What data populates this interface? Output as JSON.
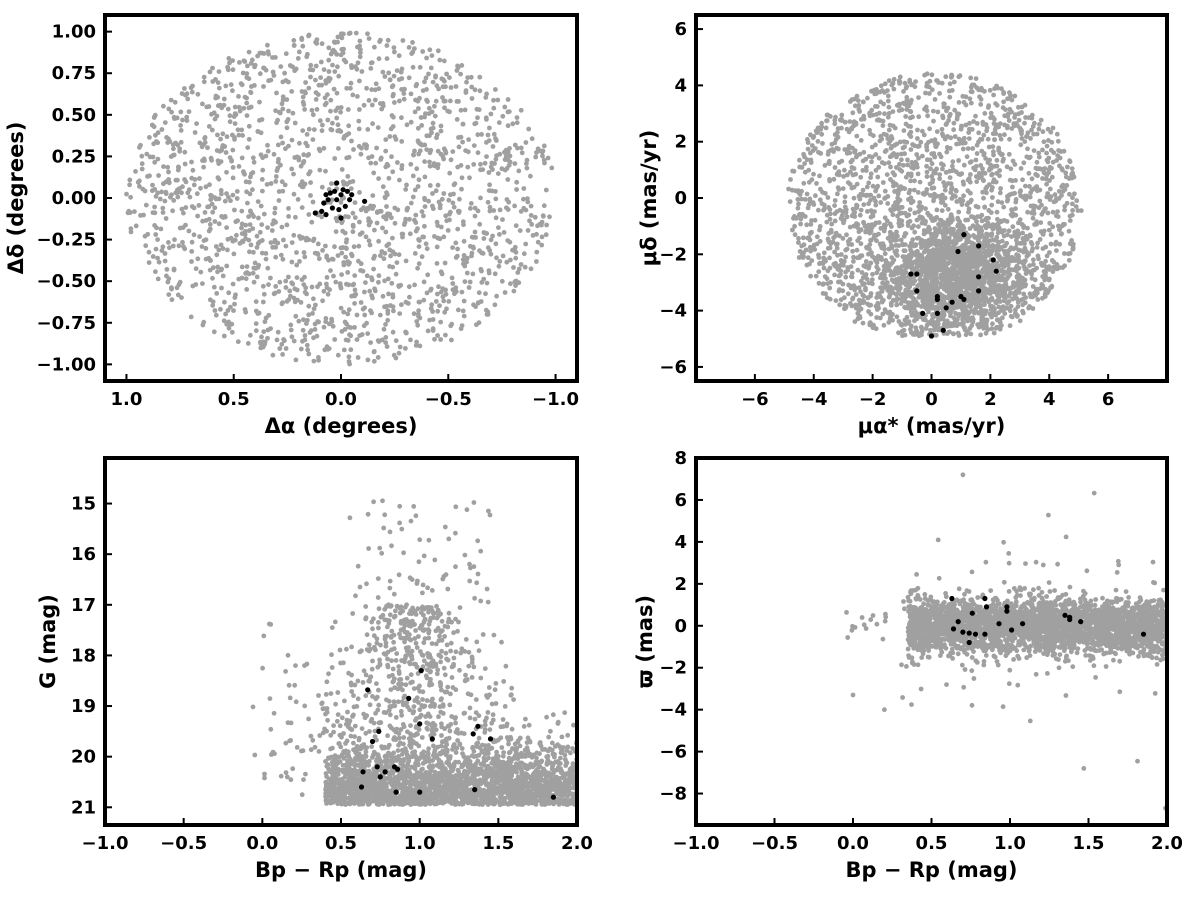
{
  "chart_data": [
    {
      "type": "scatter",
      "title": "",
      "xlabel": "Δα (degrees)",
      "ylabel": "Δδ (degrees)",
      "xlim": [
        1.1,
        -1.1
      ],
      "ylim": [
        -1.1,
        1.1
      ],
      "x_inverted": true,
      "xticks": [
        1.0,
        0.5,
        0.0,
        -0.5,
        -1.0
      ],
      "xtick_labels": [
        "1.0",
        "0.5",
        "0.0",
        "−0.5",
        "−1.0"
      ],
      "yticks": [
        -1.0,
        -0.75,
        -0.5,
        -0.25,
        0.0,
        0.25,
        0.5,
        0.75,
        1.0
      ],
      "ytick_labels": [
        "−1.00",
        "−0.75",
        "−0.50",
        "−0.25",
        "0.00",
        "0.25",
        "0.50",
        "0.75",
        "1.00"
      ],
      "grid": false,
      "field_stars": {
        "color": "#a0a0a0",
        "count_approx": 1800,
        "distribution": "uniform disk of radius 1.0 deg centred at (0, 0)"
      },
      "members": {
        "color": "#000000",
        "points": [
          [
            0.02,
            0.09
          ],
          [
            -0.01,
            0.05
          ],
          [
            0.03,
            0.04
          ],
          [
            -0.03,
            0.04
          ],
          [
            0.05,
            0.03
          ],
          [
            -0.05,
            0.02
          ],
          [
            0.07,
            0.02
          ],
          [
            0.0,
            0.02
          ],
          [
            0.06,
            -0.01
          ],
          [
            -0.04,
            -0.01
          ],
          [
            0.02,
            -0.01
          ],
          [
            0.08,
            -0.03
          ],
          [
            -0.11,
            -0.02
          ],
          [
            -0.02,
            -0.05
          ],
          [
            0.04,
            -0.06
          ],
          [
            0.09,
            -0.08
          ],
          [
            0.01,
            -0.07
          ],
          [
            0.07,
            -0.1
          ],
          [
            0.12,
            -0.09
          ],
          [
            0.0,
            -0.12
          ]
        ]
      }
    },
    {
      "type": "scatter",
      "title": "",
      "xlabel": "μα* (mas/yr)",
      "ylabel": "μδ (mas/yr)",
      "xlim": [
        -8,
        8
      ],
      "ylim": [
        -6.5,
        6.5
      ],
      "xticks": [
        -6,
        -4,
        -2,
        0,
        2,
        4,
        6
      ],
      "xtick_labels": [
        "−6",
        "−4",
        "−2",
        "0",
        "2",
        "4",
        "6"
      ],
      "yticks": [
        -6,
        -4,
        -2,
        0,
        2,
        4,
        6
      ],
      "ytick_labels": [
        "−6",
        "−4",
        "−2",
        "0",
        "2",
        "4",
        "6"
      ],
      "grid": false,
      "field_stars": {
        "color": "#a0a0a0",
        "count_approx": 3000,
        "distribution": "disk of radius ~5 mas/yr centred near (0, 0), truncated at μδ ≈ −5, denser around (0.5, −3)"
      },
      "members": {
        "color": "#000000",
        "points": [
          [
            1.1,
            -1.3
          ],
          [
            0.9,
            -1.9
          ],
          [
            1.6,
            -1.7
          ],
          [
            2.1,
            -2.2
          ],
          [
            2.2,
            -2.6
          ],
          [
            -0.7,
            -2.7
          ],
          [
            -0.5,
            -2.7
          ],
          [
            1.6,
            -2.8
          ],
          [
            -0.5,
            -3.3
          ],
          [
            1.6,
            -3.3
          ],
          [
            0.2,
            -3.5
          ],
          [
            1.0,
            -3.5
          ],
          [
            0.2,
            -3.6
          ],
          [
            1.1,
            -3.6
          ],
          [
            0.7,
            -3.7
          ],
          [
            0.5,
            -3.9
          ],
          [
            -0.3,
            -4.1
          ],
          [
            0.2,
            -4.1
          ],
          [
            0.4,
            -4.7
          ],
          [
            0.0,
            -4.9
          ]
        ]
      }
    },
    {
      "type": "scatter",
      "title": "",
      "xlabel": "Bp − Rp (mag)",
      "ylabel": "G (mag)",
      "xlim": [
        -1.0,
        2.0
      ],
      "ylim": [
        21.35,
        14.1
      ],
      "y_inverted": true,
      "xticks": [
        -1.0,
        -0.5,
        0.0,
        0.5,
        1.0,
        1.5,
        2.0
      ],
      "xtick_labels": [
        "−1.0",
        "−0.5",
        "0.0",
        "0.5",
        "1.0",
        "1.5",
        "2.0"
      ],
      "yticks": [
        21,
        20,
        19,
        18,
        17,
        16,
        15
      ],
      "ytick_labels": [
        "21",
        "20",
        "19",
        "18",
        "17",
        "16",
        "15"
      ],
      "grid": false,
      "field_stars": {
        "color": "#a0a0a0",
        "count_approx": 3000,
        "distribution": "colour-magnitude field population, dense at G ≈ 20–21 and Bp−Rp ≈ 0.4–2.0, tail to brighter magnitudes near Bp−Rp ≈ 0.8–1.3"
      },
      "members": {
        "color": "#000000",
        "points": [
          [
            1.85,
            20.8
          ],
          [
            0.85,
            20.7
          ],
          [
            1.0,
            20.7
          ],
          [
            1.35,
            20.65
          ],
          [
            0.63,
            20.6
          ],
          [
            0.75,
            20.4
          ],
          [
            0.78,
            20.3
          ],
          [
            0.64,
            20.3
          ],
          [
            0.73,
            20.2
          ],
          [
            0.84,
            20.2
          ],
          [
            0.86,
            20.25
          ],
          [
            0.7,
            19.7
          ],
          [
            1.08,
            19.65
          ],
          [
            1.45,
            19.65
          ],
          [
            1.34,
            19.55
          ],
          [
            0.74,
            19.5
          ],
          [
            1.0,
            19.35
          ],
          [
            1.37,
            19.4
          ],
          [
            0.93,
            18.85
          ],
          [
            0.67,
            18.68
          ],
          [
            1.01,
            18.3
          ]
        ]
      }
    },
    {
      "type": "scatter",
      "title": "",
      "xlabel": "Bp − Rp (mag)",
      "ylabel": "ϖ (mas)",
      "xlim": [
        -1.0,
        2.0
      ],
      "ylim": [
        -9.5,
        8.0
      ],
      "xticks": [
        -1.0,
        -0.5,
        0.0,
        0.5,
        1.0,
        1.5,
        2.0
      ],
      "xtick_labels": [
        "−1.0",
        "−0.5",
        "0.0",
        "0.5",
        "1.0",
        "1.5",
        "2.0"
      ],
      "yticks": [
        8,
        6,
        4,
        2,
        0,
        -2,
        -4,
        -6,
        -8
      ],
      "ytick_labels": [
        "8",
        "6",
        "4",
        "2",
        "0",
        "−2",
        "−4",
        "−6",
        "−8"
      ],
      "grid": false,
      "field_stars": {
        "color": "#a0a0a0",
        "count_approx": 3000,
        "distribution": "horizontal band around ϖ ≈ 0 with scatter of ~1 mas, Bp−Rp ≈ 0.2–2.0, sparse outliers up to ±8"
      },
      "members": {
        "color": "#000000",
        "points": [
          [
            0.63,
            1.3
          ],
          [
            0.84,
            1.3
          ],
          [
            0.98,
            0.9
          ],
          [
            0.85,
            0.9
          ],
          [
            0.98,
            0.7
          ],
          [
            0.76,
            0.6
          ],
          [
            1.35,
            0.5
          ],
          [
            1.38,
            0.4
          ],
          [
            1.45,
            0.2
          ],
          [
            0.67,
            0.2
          ],
          [
            0.93,
            0.1
          ],
          [
            1.08,
            0.1
          ],
          [
            1.38,
            0.3
          ],
          [
            0.64,
            -0.15
          ],
          [
            1.01,
            -0.2
          ],
          [
            0.7,
            -0.3
          ],
          [
            0.74,
            -0.35
          ],
          [
            0.78,
            -0.4
          ],
          [
            0.84,
            -0.4
          ],
          [
            1.85,
            -0.4
          ],
          [
            0.74,
            -0.8
          ]
        ]
      }
    }
  ]
}
